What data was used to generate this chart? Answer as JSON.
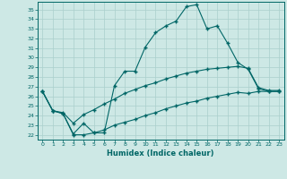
{
  "xlabel": "Humidex (Indice chaleur)",
  "bg_color": "#cde8e5",
  "grid_color": "#aacfcc",
  "line_color": "#006666",
  "xlim": [
    -0.5,
    23.5
  ],
  "ylim": [
    21.5,
    35.8
  ],
  "yticks": [
    22,
    23,
    24,
    25,
    26,
    27,
    28,
    29,
    30,
    31,
    32,
    33,
    34,
    35
  ],
  "xticks": [
    0,
    1,
    2,
    3,
    4,
    5,
    6,
    7,
    8,
    9,
    10,
    11,
    12,
    13,
    14,
    15,
    16,
    17,
    18,
    19,
    20,
    21,
    22,
    23
  ],
  "line1_x": [
    0,
    1,
    2,
    3,
    4,
    5,
    6,
    7,
    8,
    9,
    10,
    11,
    12,
    13,
    14,
    15,
    16,
    17,
    18,
    19,
    20,
    21,
    22,
    23
  ],
  "line1_y": [
    26.5,
    24.5,
    24.2,
    22.1,
    23.2,
    22.2,
    22.2,
    27.1,
    28.6,
    28.6,
    31.1,
    32.6,
    33.3,
    33.8,
    35.3,
    35.5,
    33.0,
    33.3,
    31.5,
    29.5,
    28.8,
    26.8,
    26.5,
    26.5
  ],
  "line2_x": [
    0,
    1,
    2,
    3,
    4,
    5,
    6,
    7,
    8,
    9,
    10,
    11,
    12,
    13,
    14,
    15,
    16,
    17,
    18,
    19,
    20,
    21,
    22,
    23
  ],
  "line2_y": [
    26.5,
    24.5,
    24.3,
    23.2,
    24.1,
    24.6,
    25.2,
    25.7,
    26.3,
    26.7,
    27.1,
    27.4,
    27.8,
    28.1,
    28.4,
    28.6,
    28.8,
    28.9,
    29.0,
    29.1,
    28.9,
    26.9,
    26.6,
    26.6
  ],
  "line3_x": [
    0,
    1,
    2,
    3,
    4,
    5,
    6,
    7,
    8,
    9,
    10,
    11,
    12,
    13,
    14,
    15,
    16,
    17,
    18,
    19,
    20,
    21,
    22,
    23
  ],
  "line3_y": [
    26.5,
    24.5,
    24.2,
    22.0,
    22.0,
    22.2,
    22.5,
    23.0,
    23.3,
    23.6,
    24.0,
    24.3,
    24.7,
    25.0,
    25.3,
    25.5,
    25.8,
    26.0,
    26.2,
    26.4,
    26.3,
    26.5,
    26.5,
    26.5
  ]
}
